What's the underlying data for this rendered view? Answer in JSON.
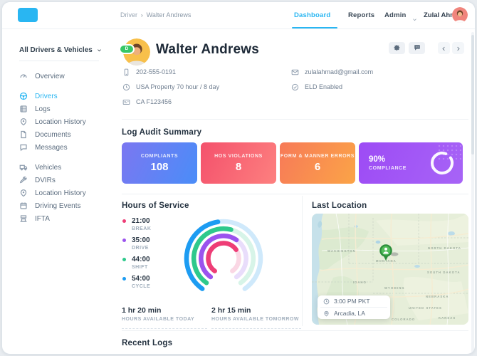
{
  "app": {
    "accent": "#29b6f2"
  },
  "topbar": {
    "breadcrumb": {
      "section": "Driver",
      "separator": "›",
      "current": "Walter Andrews"
    },
    "nav": [
      {
        "label": "Dashboard"
      },
      {
        "label": "Reports"
      },
      {
        "label": "Admin"
      }
    ],
    "user_name": "Zulal Ahmad"
  },
  "sidebar": {
    "filter_label": "All Drivers & Vehicles",
    "groups": [
      {
        "items": [
          {
            "label": "Overview"
          }
        ]
      },
      {
        "items": [
          {
            "label": "Drivers"
          },
          {
            "label": "Logs"
          },
          {
            "label": "Location History"
          },
          {
            "label": "Documents"
          },
          {
            "label": "Messages"
          }
        ]
      },
      {
        "items": [
          {
            "label": "Vehicles"
          },
          {
            "label": "DVIRs"
          },
          {
            "label": "Location History"
          },
          {
            "label": "Driving Events"
          },
          {
            "label": "IFTA"
          }
        ]
      }
    ]
  },
  "profile": {
    "name": "Walter Andrews",
    "status_badge": "D",
    "phone": "202-555-0191",
    "ruleset": "USA Property 70 hour / 8 day",
    "license": "CA F123456",
    "email": "zulalahmad@gmail.com",
    "eld_status": "ELD Enabled"
  },
  "log_audit_summary": {
    "title": "Log Audit Summary",
    "cards": [
      {
        "label": "COMPLIANTS",
        "value": "108",
        "gradient": [
          "#7b77f1",
          "#4a8df8"
        ]
      },
      {
        "label": "HOS VIOLATIONS",
        "value": "8",
        "gradient": [
          "#f4516c",
          "#fd807f"
        ]
      },
      {
        "label": "FORM & MANNER ERRORS",
        "value": "6",
        "gradient": [
          "#f77a58",
          "#fba447"
        ]
      },
      {
        "label": "COMPLIANCE",
        "value": "90%",
        "gradient": [
          "#9d4bf5",
          "#a764f6"
        ],
        "progress": 0.9
      }
    ]
  },
  "chart_data": {
    "type": "radial-gauge",
    "title": "Hours of Service",
    "legend_position": "left",
    "arc_span_degrees": 290,
    "rings": [
      {
        "name": "BREAK",
        "time": "21:00",
        "progress": 0.69,
        "color": "#ee3d76",
        "track": "#fad7e4"
      },
      {
        "name": "DRIVE",
        "time": "35:00",
        "progress": 0.62,
        "color": "#9b53ee",
        "track": "#e9ddfb"
      },
      {
        "name": "SHIFT",
        "time": "44:00",
        "progress": 0.55,
        "color": "#2ec98c",
        "track": "#d7f4e8"
      },
      {
        "name": "CYCLE",
        "time": "54:00",
        "progress": 0.47,
        "color": "#1d9cf2",
        "track": "#cfe9fb"
      }
    ],
    "stats": [
      {
        "value": "1 hr 20 min",
        "label": "HOURS AVAILABLE TODAY"
      },
      {
        "value": "2 hr 15 min",
        "label": "HOURS AVAILABLE TOMORROW"
      }
    ]
  },
  "last_location": {
    "title": "Last Location",
    "time": "3:00 PM PKT",
    "place": "Arcadia, LA",
    "map_labels": [
      "WASHINGTON",
      "MONTANA",
      "NORTH DAKOTA",
      "SOUTH DAKOTA",
      "IDAHO",
      "WYOMING",
      "NEBRASKA",
      "UNITED STATES",
      "COLORADO",
      "KANSAS"
    ]
  },
  "recent_logs": {
    "title": "Recent Logs"
  }
}
